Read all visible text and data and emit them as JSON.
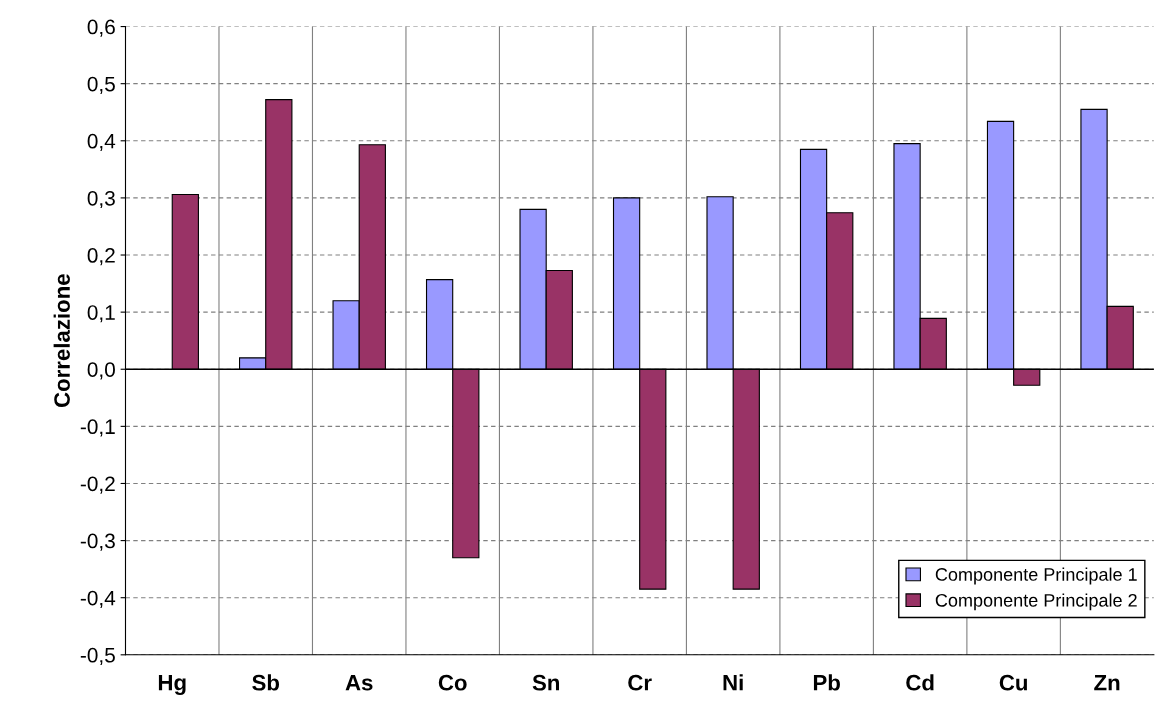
{
  "chart_data": {
    "type": "bar",
    "ylabel": "Correlazione",
    "categories": [
      "Hg",
      "Sb",
      "As",
      "Co",
      "Sn",
      "Cr",
      "Ni",
      "Pb",
      "Cd",
      "Cu",
      "Zn"
    ],
    "series": [
      {
        "name": "Componente Principale 1",
        "color": "#9999ff",
        "values": [
          null,
          0.02,
          0.12,
          0.157,
          0.28,
          0.3,
          0.302,
          0.385,
          0.395,
          0.434,
          0.455
        ]
      },
      {
        "name": "Componente Principale 2",
        "color": "#993366",
        "values": [
          0.306,
          0.472,
          0.393,
          -0.33,
          0.173,
          -0.385,
          -0.385,
          0.274,
          0.089,
          -0.028,
          0.11
        ]
      }
    ],
    "ylim": [
      -0.5,
      0.6
    ],
    "yticks": [
      {
        "value": -0.5,
        "label": "-0,5"
      },
      {
        "value": -0.4,
        "label": "-0,4"
      },
      {
        "value": -0.3,
        "label": "-0,3"
      },
      {
        "value": -0.2,
        "label": "-0,2"
      },
      {
        "value": -0.1,
        "label": "-0,1"
      },
      {
        "value": 0.0,
        "label": "0,0"
      },
      {
        "value": 0.1,
        "label": "0,1"
      },
      {
        "value": 0.2,
        "label": "0,2"
      },
      {
        "value": 0.3,
        "label": "0,3"
      },
      {
        "value": 0.4,
        "label": "0,4"
      },
      {
        "value": 0.5,
        "label": "0,5"
      },
      {
        "value": 0.6,
        "label": "0,6"
      }
    ],
    "grid": true,
    "legend": "bottom right"
  }
}
